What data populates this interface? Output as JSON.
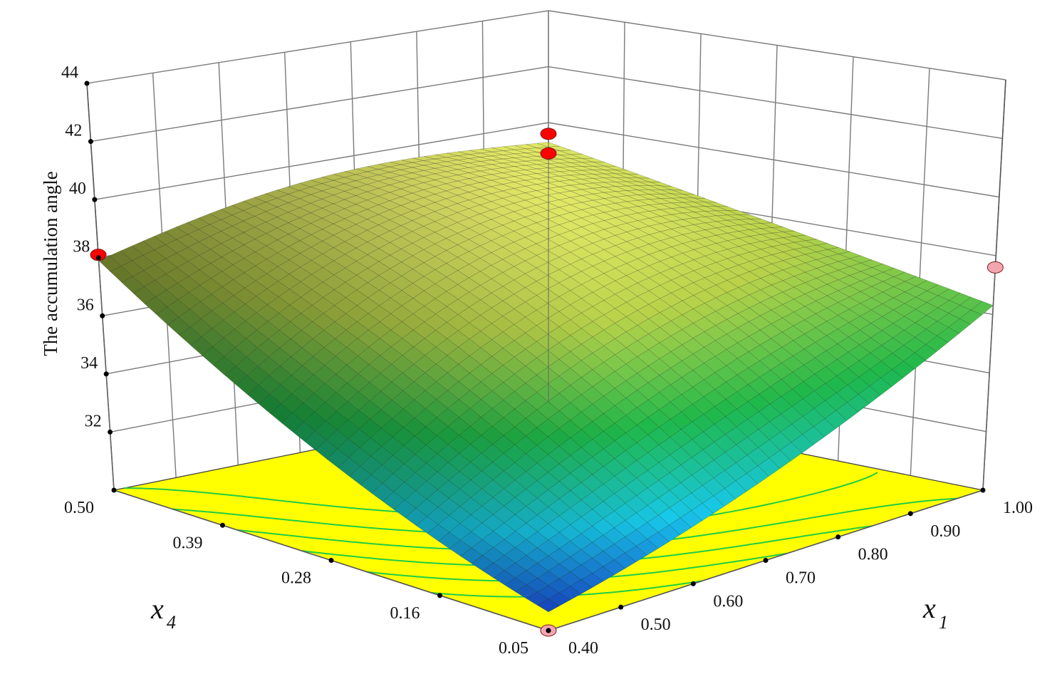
{
  "chart_data": {
    "type": "surface",
    "zlabel": "The accumulation angle",
    "x1_label": "x",
    "x1_sub": "1",
    "x4_label": "x",
    "x4_sub": "4",
    "x1_ticks": [
      "0.40",
      "0.50",
      "0.60",
      "0.70",
      "0.80",
      "0.90",
      "1.00"
    ],
    "x4_ticks": [
      "0.05",
      "0.16",
      "0.28",
      "0.39",
      "0.50"
    ],
    "z_ticks": [
      "32",
      "34",
      "36",
      "38",
      "40",
      "42",
      "44"
    ],
    "zlim": [
      30,
      44
    ],
    "x1_range": [
      0.4,
      1.0
    ],
    "x4_range": [
      0.05,
      0.5
    ],
    "surface_corners": {
      "x1_0.40_x4_0.05": 31.2,
      "x1_1.00_x4_0.05": 36.3,
      "x1_0.40_x4_0.50": 37.9,
      "x1_1.00_x4_0.50": 39.3,
      "x1_0.70_x4_0.28": 38.0
    },
    "design_points": [
      {
        "x1": 0.4,
        "x4": 0.5,
        "z": 38.1,
        "color": "#ff0000"
      },
      {
        "x1": 1.0,
        "x4": 0.5,
        "z": 39.6,
        "color": "#ff0000"
      },
      {
        "x1": 1.0,
        "x4": 0.5,
        "z": 38.9,
        "color": "#ff0000"
      },
      {
        "x1": 0.4,
        "x4": 0.05,
        "z": 30.0,
        "color": "#f4a6b0"
      },
      {
        "x1": 1.0,
        "x4": 0.05,
        "z": 37.6,
        "color": "#f4a6b0"
      }
    ],
    "floor_color": "#ffff00",
    "contour_color": "#22cc44",
    "colormap": [
      "#1a3fd4",
      "#18c8e8",
      "#1fb84a",
      "#b8d24a",
      "#f0f070"
    ]
  }
}
